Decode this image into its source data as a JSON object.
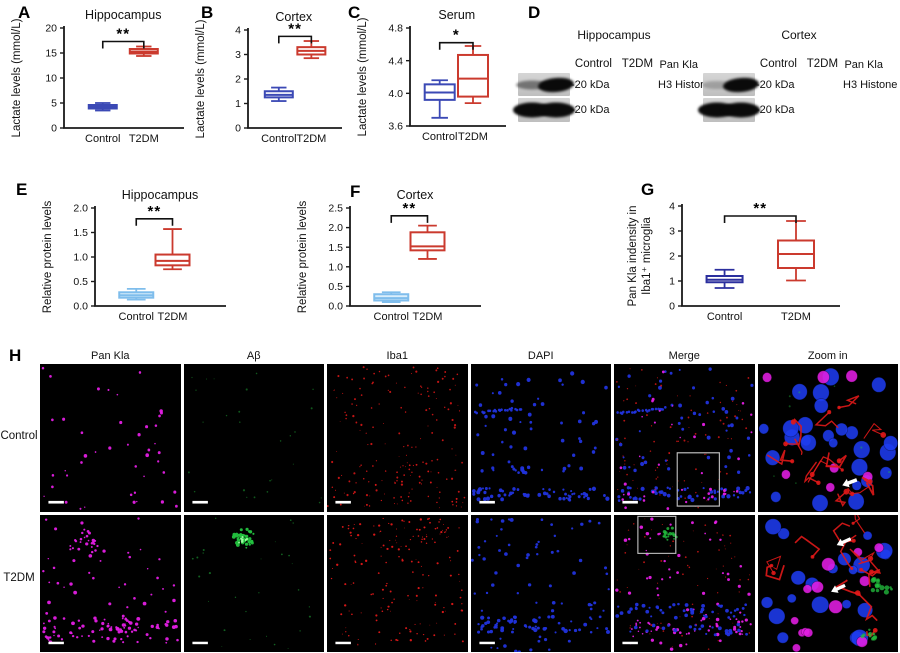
{
  "panels": {
    "a": "A",
    "b": "B",
    "c": "C",
    "d": "D",
    "e": "E",
    "f": "F",
    "g": "G",
    "h": "H"
  },
  "chart_data": [
    {
      "id": "A",
      "type": "box",
      "title": "Hippocampus",
      "ylabel": "Lactate levels (mmol/L)",
      "ylim": [
        0,
        20
      ],
      "ytick_values": [
        0,
        5,
        10,
        15,
        20
      ],
      "ytick_labels": [
        "0",
        "5",
        "10",
        "15",
        "20"
      ],
      "categories": [
        "Control",
        "T2DM"
      ],
      "series": [
        {
          "name": "Control",
          "color": "#3b49b5",
          "fill": "#ffffff",
          "whislo": 3.5,
          "q1": 3.9,
          "med": 4.2,
          "q3": 4.6,
          "whishi": 5.0
        },
        {
          "name": "T2DM",
          "color": "#cb3a2e",
          "fill": "#ffffff",
          "whislo": 14.4,
          "q1": 14.9,
          "med": 15.3,
          "q3": 15.8,
          "whishi": 16.3
        }
      ],
      "significance": {
        "label": "**",
        "y": 17.3
      }
    },
    {
      "id": "B",
      "type": "box",
      "title": "Cortex",
      "ylabel": "Lactate levels (mmol/L)",
      "ylim": [
        0,
        4
      ],
      "ytick_values": [
        0,
        1,
        2,
        3,
        4
      ],
      "ytick_labels": [
        "0",
        "1",
        "2",
        "3",
        "4"
      ],
      "categories": [
        "Control",
        "T2DM"
      ],
      "series": [
        {
          "name": "Control",
          "color": "#3b49b5",
          "fill": "#ffffff",
          "whislo": 1.1,
          "q1": 1.25,
          "med": 1.35,
          "q3": 1.5,
          "whishi": 1.65
        },
        {
          "name": "T2DM",
          "color": "#cb3a2e",
          "fill": "#ffffff",
          "whislo": 2.85,
          "q1": 3.0,
          "med": 3.15,
          "q3": 3.3,
          "whishi": 3.55
        }
      ],
      "significance": {
        "label": "**",
        "y": 3.74
      }
    },
    {
      "id": "C",
      "type": "box",
      "title": "Serum",
      "ylabel": "Lactate levels (mmol/L)",
      "ylim": [
        3.6,
        4.8
      ],
      "ytick_values": [
        3.6,
        4.0,
        4.4,
        4.8
      ],
      "ytick_labels": [
        "3.6",
        "4.0",
        "4.4",
        "4.8"
      ],
      "categories": [
        "Control",
        "T2DM"
      ],
      "series": [
        {
          "name": "Control",
          "color": "#3b49b5",
          "fill": "#ffffff",
          "whislo": 3.7,
          "q1": 3.92,
          "med": 4.01,
          "q3": 4.11,
          "whishi": 4.16
        },
        {
          "name": "T2DM",
          "color": "#cb3a2e",
          "fill": "#ffffff",
          "whislo": 3.88,
          "q1": 3.96,
          "med": 4.18,
          "q3": 4.47,
          "whishi": 4.58
        }
      ],
      "significance": {
        "label": "*",
        "y": 4.62
      }
    },
    {
      "id": "E",
      "type": "box",
      "title": "Hippocampus",
      "ylabel": "Relative protein levels",
      "ylim": [
        0,
        2
      ],
      "ytick_values": [
        0,
        0.5,
        1,
        1.5,
        2
      ],
      "ytick_labels": [
        "0.0",
        "0.5",
        "1.0",
        "1.5",
        "2.0"
      ],
      "categories": [
        "Control",
        "T2DM"
      ],
      "series": [
        {
          "name": "Control",
          "color": "#7fbdec",
          "fill": "#daeefb",
          "whislo": 0.13,
          "q1": 0.17,
          "med": 0.22,
          "q3": 0.28,
          "whishi": 0.35
        },
        {
          "name": "T2DM",
          "color": "#cb3a2e",
          "fill": "#ffffff",
          "whislo": 0.75,
          "q1": 0.83,
          "med": 0.92,
          "q3": 1.05,
          "whishi": 1.57
        }
      ],
      "significance": {
        "label": "**",
        "y": 1.78
      }
    },
    {
      "id": "F",
      "type": "box",
      "title": "Cortex",
      "ylabel": "Relative protein levels",
      "ylim": [
        0,
        2.5
      ],
      "ytick_values": [
        0,
        0.5,
        1,
        1.5,
        2,
        2.5
      ],
      "ytick_labels": [
        "0.0",
        "0.5",
        "1.0",
        "1.5",
        "2.0",
        "2.5"
      ],
      "categories": [
        "Control",
        "T2DM"
      ],
      "series": [
        {
          "name": "Control",
          "color": "#7fbdec",
          "fill": "#daeefb",
          "whislo": 0.1,
          "q1": 0.14,
          "med": 0.2,
          "q3": 0.3,
          "whishi": 0.35
        },
        {
          "name": "T2DM",
          "color": "#cb3a2e",
          "fill": "#ffffff",
          "whislo": 1.2,
          "q1": 1.42,
          "med": 1.52,
          "q3": 1.88,
          "whishi": 2.05
        }
      ],
      "significance": {
        "label": "**",
        "y": 2.3
      }
    },
    {
      "id": "G",
      "type": "box",
      "title": "",
      "ylabel": [
        "Pan Kla indensity in",
        "Iba1⁺ microglia"
      ],
      "ylim": [
        0,
        4
      ],
      "ytick_values": [
        0,
        1,
        2,
        3,
        4
      ],
      "ytick_labels": [
        "0",
        "1",
        "2",
        "3",
        "4"
      ],
      "categories": [
        "Control",
        "T2DM"
      ],
      "series": [
        {
          "name": "Control",
          "color": "#2b2f9e",
          "fill": "#ffffff",
          "whislo": 0.72,
          "q1": 0.95,
          "med": 1.05,
          "q3": 1.2,
          "whishi": 1.45
        },
        {
          "name": "T2DM",
          "color": "#cb3a2e",
          "fill": "#ffffff",
          "whislo": 1.02,
          "q1": 1.52,
          "med": 2.08,
          "q3": 2.62,
          "whishi": 3.4
        }
      ],
      "significance": {
        "label": "**",
        "y": 3.6
      }
    }
  ],
  "blots": {
    "groups": [
      {
        "title": "Hippocampus",
        "lanes": [
          "Control",
          "T2DM"
        ],
        "rows": [
          {
            "label": "Pan Kla",
            "marker": "-20 kDa",
            "bands": [
              "faint",
              "strong-tilt"
            ]
          },
          {
            "label": "H3 Histone",
            "marker": "-20 kDa",
            "bands": [
              "h3b",
              "h3b"
            ]
          }
        ]
      },
      {
        "title": "Cortex",
        "lanes": [
          "Control",
          "T2DM"
        ],
        "rows": [
          {
            "label": "Pan Kla",
            "marker": "-20 kDa",
            "bands": [
              "xfaint",
              "strong-tilt"
            ]
          },
          {
            "label": "H3 Histone",
            "marker": "-20 kDa",
            "bands": [
              "h3b",
              "h3b"
            ]
          }
        ]
      }
    ]
  },
  "microscopy": {
    "columns": [
      "Pan Kla",
      "Aβ",
      "Iba1",
      "DAPI",
      "Merge",
      "Zoom in"
    ],
    "rows": [
      "Control",
      "T2DM"
    ],
    "colors": {
      "pan_kla": "#e41ee4",
      "abeta": "#23c23f",
      "iba1": "#e01818",
      "dapi": "#2133dd",
      "nuclei": "#1e3cf0",
      "arrow": "#ffffff",
      "inset_box": "#c0c0c0",
      "scale_bar": "#ffffff",
      "background": "#000000"
    }
  }
}
